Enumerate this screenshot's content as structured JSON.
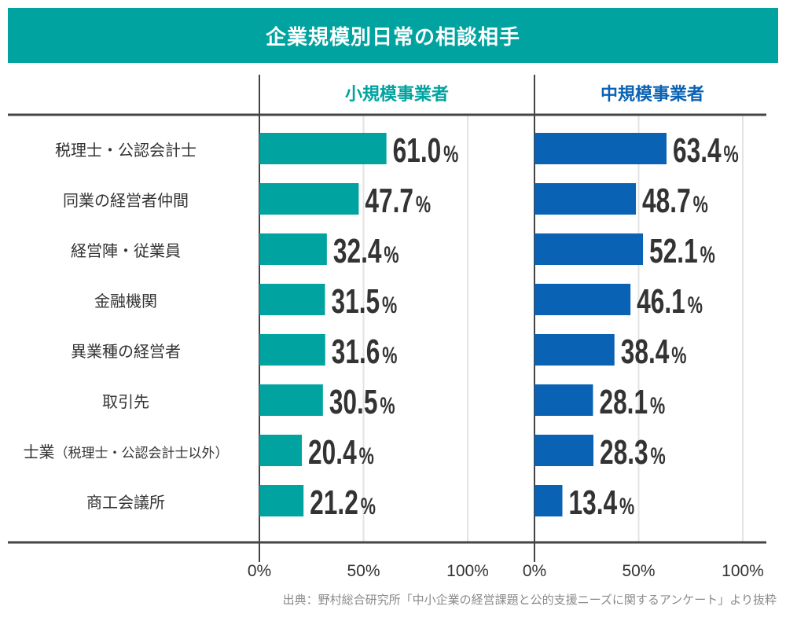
{
  "colors": {
    "title_bg": "#00a39f",
    "small": "#00a39f",
    "medium": "#0a62b4",
    "text": "#333333",
    "axis": "#444444",
    "grid": "#e3e3e3"
  },
  "chart_data": {
    "type": "bar",
    "orientation": "horizontal",
    "title": "企業規模別日常の相談相手",
    "categories": [
      "税理士・公認会計士",
      "同業の経営者仲間",
      "経営陣・従業員",
      "金融機関",
      "異業種の経営者",
      "取引先",
      "士業(税理士・公認会計士以外)",
      "商工会議所"
    ],
    "series": [
      {
        "name": "小規模事業者",
        "values": [
          61.0,
          47.7,
          32.4,
          31.5,
          31.6,
          30.5,
          20.4,
          21.2
        ],
        "labels": [
          "61.0",
          "47.7",
          "32.4",
          "31.5",
          "31.6",
          "30.5",
          "20.4",
          "21.2"
        ]
      },
      {
        "name": "中規模事業者",
        "values": [
          63.4,
          48.7,
          52.1,
          46.1,
          38.4,
          28.1,
          28.3,
          13.4
        ],
        "labels": [
          "63.4",
          "48.7",
          "52.1",
          "46.1",
          "38.4",
          "28.1",
          "28.3",
          "13.4"
        ]
      }
    ],
    "unit": "%",
    "xlim": [
      0,
      100
    ],
    "xticks": [
      "0%",
      "50%",
      "100%"
    ],
    "grid": true,
    "source": "出典：野村総合研究所「中小企業の経営課題と公的支援ニーズに関するアンケート」より抜粋"
  },
  "labels_display": {
    "cat6_main": "士業",
    "cat6_paren": "（税理士・公認会計士以外）"
  }
}
